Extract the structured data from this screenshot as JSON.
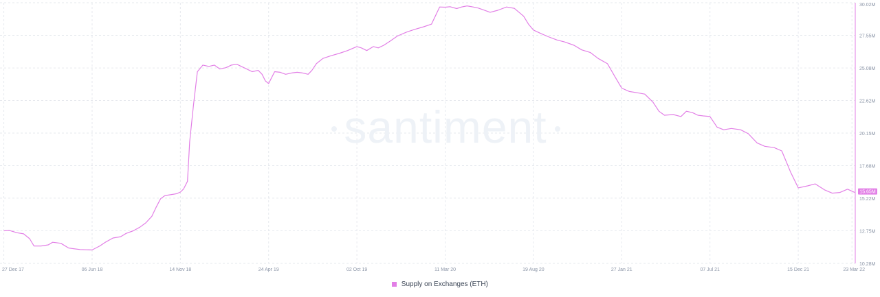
{
  "watermark": "santiment",
  "current_value_label": "15.65M",
  "colors": {
    "series": "#e27fe6",
    "grid": "#e6e9ee",
    "axis_text": "#8a94a6",
    "watermark": "#eef2f7"
  },
  "legend": {
    "label": "Supply on Exchanges (ETH)"
  },
  "chart_data": {
    "type": "line",
    "title": "",
    "xlabel": "",
    "ylabel": "",
    "ylim": [
      10.28,
      30.02
    ],
    "y_ticks": [
      "30.02M",
      "27.55M",
      "25.08M",
      "22.62M",
      "20.15M",
      "17.68M",
      "15.22M",
      "12.75M",
      "10.28M"
    ],
    "x_ticks": [
      "27 Dec 17",
      "06 Jun 18",
      "14 Nov 18",
      "24 Apr 19",
      "02 Oct 19",
      "11 Mar 20",
      "19 Aug 20",
      "27 Jan 21",
      "07 Jul 21",
      "15 Dec 21",
      "23 Mar 22"
    ],
    "grid": true,
    "legend_position": "bottom-center",
    "series": [
      {
        "name": "Supply on Exchanges (ETH)",
        "x": [
          "2017-12-27",
          "2018-01-06",
          "2018-01-20",
          "2018-02-01",
          "2018-02-12",
          "2018-02-20",
          "2018-03-05",
          "2018-03-18",
          "2018-03-26",
          "2018-04-10",
          "2018-04-24",
          "2018-05-01",
          "2018-05-15",
          "2018-06-06",
          "2018-06-20",
          "2018-07-01",
          "2018-07-14",
          "2018-07-28",
          "2018-08-07",
          "2018-08-20",
          "2018-09-01",
          "2018-09-12",
          "2018-09-23",
          "2018-10-01",
          "2018-10-09",
          "2018-10-17",
          "2018-10-27",
          "2018-11-07",
          "2018-11-14",
          "2018-11-20",
          "2018-11-27",
          "2018-12-01",
          "2018-12-08",
          "2018-12-15",
          "2018-12-25",
          "2019-01-05",
          "2019-01-15",
          "2019-01-25",
          "2019-02-05",
          "2019-02-15",
          "2019-02-25",
          "2019-03-05",
          "2019-03-15",
          "2019-03-25",
          "2019-04-05",
          "2019-04-12",
          "2019-04-18",
          "2019-04-24",
          "2019-05-05",
          "2019-05-15",
          "2019-05-25",
          "2019-06-05",
          "2019-06-15",
          "2019-06-25",
          "2019-07-05",
          "2019-07-12",
          "2019-07-20",
          "2019-08-01",
          "2019-08-15",
          "2019-09-01",
          "2019-09-15",
          "2019-10-02",
          "2019-10-10",
          "2019-10-20",
          "2019-11-01",
          "2019-11-10",
          "2019-11-20",
          "2019-12-01",
          "2019-12-15",
          "2020-01-01",
          "2020-01-15",
          "2020-02-01",
          "2020-02-15",
          "2020-03-01",
          "2020-03-11",
          "2020-03-20",
          "2020-04-01",
          "2020-04-10",
          "2020-04-20",
          "2020-05-01",
          "2020-05-10",
          "2020-05-20",
          "2020-06-01",
          "2020-06-15",
          "2020-07-01",
          "2020-07-15",
          "2020-08-01",
          "2020-08-10",
          "2020-08-19",
          "2020-09-01",
          "2020-09-15",
          "2020-10-01",
          "2020-10-15",
          "2020-11-01",
          "2020-11-15",
          "2020-12-01",
          "2020-12-15",
          "2021-01-01",
          "2021-01-15",
          "2021-01-27",
          "2021-02-10",
          "2021-02-25",
          "2021-03-10",
          "2021-03-25",
          "2021-04-05",
          "2021-04-15",
          "2021-05-01",
          "2021-05-15",
          "2021-05-25",
          "2021-06-05",
          "2021-06-15",
          "2021-06-25",
          "2021-07-07",
          "2021-07-20",
          "2021-08-01",
          "2021-08-15",
          "2021-09-01",
          "2021-09-15",
          "2021-10-01",
          "2021-10-15",
          "2021-11-01",
          "2021-11-15",
          "2021-12-01",
          "2021-12-15",
          "2022-01-01",
          "2022-01-15",
          "2022-02-01",
          "2022-02-15",
          "2022-03-01",
          "2022-03-15",
          "2022-03-28"
        ],
        "values": [
          12.75,
          12.78,
          12.6,
          12.52,
          12.15,
          11.6,
          11.6,
          11.68,
          11.88,
          11.8,
          11.45,
          11.4,
          11.33,
          11.3,
          11.6,
          11.9,
          12.2,
          12.3,
          12.55,
          12.75,
          13.02,
          13.35,
          13.85,
          14.55,
          15.18,
          15.42,
          15.48,
          15.56,
          15.68,
          15.92,
          16.5,
          19.5,
          22.3,
          24.8,
          25.3,
          25.2,
          25.3,
          25.0,
          25.1,
          25.3,
          25.36,
          25.2,
          25.0,
          24.8,
          24.9,
          24.6,
          24.1,
          23.9,
          24.8,
          24.75,
          24.6,
          24.7,
          24.75,
          24.7,
          24.6,
          24.9,
          25.4,
          25.8,
          26.0,
          26.2,
          26.4,
          26.7,
          26.6,
          26.4,
          26.7,
          26.6,
          26.8,
          27.1,
          27.5,
          27.8,
          28.0,
          28.2,
          28.4,
          29.7,
          29.68,
          29.72,
          29.58,
          29.7,
          29.78,
          29.7,
          29.62,
          29.48,
          29.3,
          29.45,
          29.7,
          29.6,
          29.0,
          28.4,
          27.95,
          27.7,
          27.45,
          27.2,
          27.05,
          26.8,
          26.45,
          26.25,
          25.8,
          25.4,
          24.4,
          23.55,
          23.3,
          23.2,
          23.1,
          22.5,
          21.8,
          21.5,
          21.55,
          21.4,
          21.8,
          21.7,
          21.5,
          21.45,
          21.4,
          20.6,
          20.4,
          20.5,
          20.4,
          20.1,
          19.4,
          19.15,
          19.05,
          18.8,
          17.2,
          16.0,
          16.15,
          16.3,
          15.85,
          15.6,
          15.65,
          15.9,
          15.65
        ]
      }
    ]
  }
}
